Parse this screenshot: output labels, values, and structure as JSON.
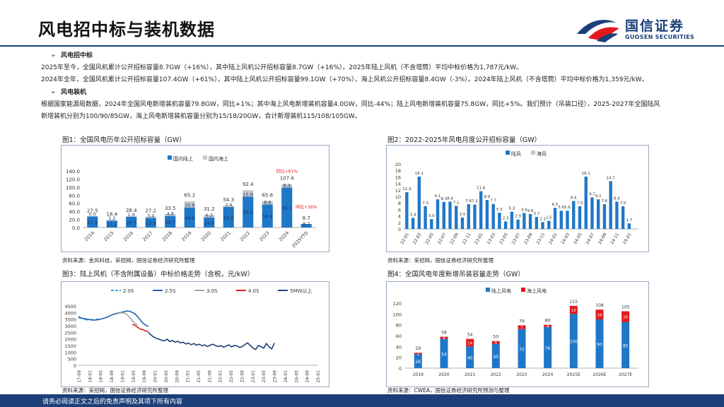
{
  "header": {
    "title": "风电招中标与装机数据"
  },
  "logo": {
    "cn": "国信证券",
    "en": "GUOSEN SECURITIES"
  },
  "colors": {
    "navy": "#1c3f7a",
    "blue": "#1f77c8",
    "red": "#e3191c",
    "lightgray": "#c8c8c8",
    "gray": "#a6a6a6",
    "dashblue": "#2fa6e0"
  },
  "text": {
    "sec1_title": "风电招中标",
    "sec1_p1": "2025年至今，全国风机累计公开招标容量8.7GW（+16%），其中陆上风机公开招标容量8.7GW（+16%）。2025年陆上风机（不含塔筒）平均中标价格为1,787元/kW。",
    "sec1_p2": "2024年全年，全国风机累计公开招标容量107.4GW（+61%），其中陆上风机公开招标容量99.1GW（+70%），海上风机公开招标容量8.4GW（-3%）。2024年陆上风机（不含塔筒）平均中标价格为1,359元/kW。",
    "sec2_title": "风电装机",
    "sec2_p1": "根据国家能源局数据，2024年全国风电新增装机容量79.8GW，同比+1%；其中海上风电新增装机容量4.0GW，同比-44%；陆上风电新增装机容量75.8GW，同比+5%。我们预计（吊装口径），2025-2027年全国陆风",
    "sec2_p2": "新增装机分别为100/90/85GW，海上风电新增装机容量分别为15/18/20GW，合计新增装机115/108/105GW。"
  },
  "fig1": {
    "title": "图1：全国风电历年公开招标容量（GW）",
    "source": "资料来源：金风科技，采招网，国信证券经济研究所整理",
    "annotations": [
      "同比+61%",
      "同比+16%"
    ]
  },
  "fig2": {
    "title": "图2：2022-2025年风电月度公开招标容量（GW）",
    "source": "资料来源：采招网，国信证券经济研究所整理"
  },
  "fig3": {
    "title": "图3：陆上风机（不含附属设备）中标价格走势（含税，元/kW）",
    "source": "资料来源：采招网，国信证券经济研究所整理"
  },
  "fig4": {
    "title": "图4：全国风电年度新增吊装容量走势（GW）",
    "source": "资料来源：CWEA，国信证券经济研究所预测与整理"
  },
  "footer": {
    "text": "请务必阅读正文之后的免责声明及其项下所有内容"
  },
  "chart_data": [
    {
      "type": "bar",
      "stacked": true,
      "categories": [
        "2014",
        "2015",
        "2016",
        "2017",
        "2018",
        "2019",
        "2020",
        "2021",
        "2022",
        "2023",
        "2024",
        "2025YTD"
      ],
      "series": [
        {
          "name": "国内陆上",
          "values": [
            27.5,
            17.2,
            26.5,
            23.8,
            28.7,
            49.6,
            24.9,
            50.9,
            76.5,
            56.9,
            99.1,
            8.7
          ],
          "color": "#1f77c8"
        },
        {
          "name": "国内海上",
          "values": [
            0.0,
            1.2,
            1.9,
            3.4,
            4.8,
            15.6,
            6.3,
            3.4,
            15.9,
            8.6,
            8.4,
            0.0
          ],
          "color": "#c8c8c8"
        }
      ],
      "totals": [
        27.5,
        18.4,
        28.4,
        27.2,
        33.5,
        65.2,
        31.2,
        54.3,
        92.4,
        65.6,
        107.4,
        8.7
      ],
      "ylim": [
        0,
        140
      ],
      "yticks": [
        "0.0",
        "20.0",
        "40.0",
        "60.0",
        "80.0",
        "100.0",
        "120.0",
        "140.0"
      ],
      "legend": "top"
    },
    {
      "type": "bar",
      "stacked": true,
      "categories": [
        "22-01",
        "22-02",
        "22-03",
        "22-04",
        "22-05",
        "22-06",
        "22-07",
        "22-08",
        "22-09",
        "22-10",
        "22-11",
        "22-12",
        "23-01",
        "23-02",
        "23-03",
        "23-04",
        "23-05",
        "23-06",
        "23-07",
        "23-08",
        "23-09",
        "23-10",
        "23-11",
        "23-12",
        "24-01",
        "24-02",
        "24-03",
        "24-04",
        "24-05",
        "24-06",
        "24-07",
        "24-08",
        "24-09",
        "24-10",
        "24-11",
        "24-12",
        "25-01",
        "25-02"
      ],
      "xticks": [
        "22-01",
        "22-03",
        "22-05",
        "22-07",
        "22-09",
        "22-11",
        "23-01",
        "23-03",
        "23-05",
        "23-07",
        "23-09",
        "23-11",
        "24-01",
        "24-03",
        "24-05",
        "24-07",
        "24-09",
        "24-11",
        "25-01"
      ],
      "series": [
        {
          "name": "陆风",
          "values": [
            11.3,
            3.4,
            16.1,
            7.0,
            3.0,
            9.1,
            8.3,
            8.4,
            7.1,
            3.5,
            7.6,
            7.5,
            11.6,
            8.9,
            7.7,
            5.0,
            2.3,
            5.3,
            2.9,
            4.9,
            4.6,
            3.7,
            2.1,
            2.5,
            6.5,
            5.6,
            5.6,
            8.6,
            7.0,
            16.1,
            9.7,
            9.1,
            7.6,
            14.7,
            8.4,
            7.0,
            1.7,
            0
          ],
          "color": "#1f77c8"
        },
        {
          "name": "海风",
          "values": [
            0,
            0,
            0,
            0,
            0,
            0,
            0,
            0,
            0,
            0,
            0,
            0,
            0,
            0,
            0,
            0,
            0,
            0,
            0,
            0,
            0,
            0,
            0,
            0,
            0,
            0,
            0,
            0,
            0,
            0,
            0,
            0,
            0,
            0,
            0,
            0,
            0,
            0
          ],
          "color": "#c8c8c8"
        }
      ],
      "labels": [
        "11.3",
        "3.4",
        "16.1",
        "7.0",
        "3.0",
        "9.1",
        "8.3",
        "8.4",
        "7.1",
        "3.5",
        "7.6",
        "7.5",
        "11.6",
        "8.9",
        "7.7",
        "5.0",
        "2.3",
        "5.3",
        "2.9",
        "4.9",
        "4.6",
        "3.7",
        "2.1",
        "2.5",
        "6.5",
        "5.6",
        "5.6",
        "8.6",
        "7.0",
        "16.1",
        "9.7",
        "9.1",
        "7.6",
        "14.7",
        "8.4",
        "7.0",
        "1.7",
        ""
      ],
      "ylim": [
        0,
        20
      ],
      "yticks": [
        "0",
        "2",
        "4",
        "6",
        "8",
        "10",
        "12",
        "14",
        "16",
        "18",
        "20"
      ],
      "legend": "top"
    },
    {
      "type": "line",
      "xticks": [
        "17-09",
        "18-01",
        "18-05",
        "18-09",
        "19-01",
        "19-05",
        "19-09",
        "20-01",
        "20-05",
        "20-09",
        "21-01",
        "21-05",
        "21-09",
        "22-01",
        "22-05",
        "22-09",
        "23-01",
        "23-05",
        "23-09",
        "24-01",
        "24-05",
        "24-09",
        "25-01"
      ],
      "series": [
        {
          "name": "2.0S",
          "color": "#2fa6e0",
          "dash": true,
          "start": 0,
          "values": [
            3600,
            3560,
            3500,
            3440,
            3430,
            3480,
            3420,
            3500,
            3540
          ]
        },
        {
          "name": "2.5S",
          "color": "#1f5fb4",
          "dash": false,
          "start": 0,
          "values": [
            3700,
            3580,
            3550,
            3500,
            3470,
            3440,
            3430,
            3450,
            3480,
            3540,
            3600,
            3680,
            3780,
            3860,
            3920,
            3980,
            4020,
            4060,
            4120,
            4100,
            4020,
            3900,
            3700,
            3450,
            3200,
            3050,
            2950
          ]
        },
        {
          "name": "3.0S",
          "color": "#a6a6a6",
          "dash": false,
          "start": 14,
          "values": [
            3880,
            3950,
            3980,
            3960,
            3860,
            3650,
            3380,
            3200,
            3050
          ]
        },
        {
          "name": "4.0S",
          "color": "#e3191c",
          "dash": false,
          "start": 20,
          "values": [
            3100,
            3050,
            2880,
            2760,
            2700,
            2600,
            2560
          ]
        },
        {
          "name": "5MW以上",
          "color": "#1c3f7a",
          "dash": false,
          "start": 26,
          "values": [
            2500,
            2300,
            2150,
            2050,
            1980,
            1900,
            1850,
            1980,
            1800,
            1880,
            1750,
            1820,
            1700,
            1750,
            1620,
            1680,
            1560,
            1650,
            1520,
            1600,
            1480,
            1550,
            1430,
            1520,
            1600,
            1500,
            1420,
            1500,
            1380,
            1450,
            1550,
            1400,
            1500,
            1480,
            1350,
            1420,
            1580,
            1700,
            1500,
            1300,
            1200,
            1500,
            1420,
            1300,
            1650,
            1400,
            1250,
            1700
          ]
        }
      ],
      "points_total": 90,
      "ylim": [
        0,
        4500
      ],
      "yticks": [
        "0",
        "500",
        "1000",
        "1500",
        "2000",
        "2500",
        "3000",
        "3500",
        "4000",
        "4500"
      ],
      "legend": "top"
    },
    {
      "type": "bar",
      "stacked": true,
      "categories": [
        "2019",
        "2020",
        "2021",
        "2022",
        "2023",
        "2024",
        "2025E",
        "2026E",
        "2027E"
      ],
      "series": [
        {
          "name": "陆上风电",
          "values": [
            26,
            54,
            40,
            45,
            72,
            76,
            100,
            90,
            85
          ],
          "color": "#1f77c8"
        },
        {
          "name": "海上风电",
          "values": [
            2.4,
            4,
            14,
            5,
            7,
            4,
            15,
            18,
            20
          ],
          "color": "#e3191c"
        }
      ],
      "bottom_labels": [
        "26",
        "54",
        "40",
        "45",
        "72",
        "76",
        "100",
        "90",
        "85"
      ],
      "top_labels": [
        "2",
        "4",
        "14",
        "5",
        "7",
        "4",
        "15",
        "18",
        "20"
      ],
      "totals": [
        "29",
        "58",
        "54",
        "50",
        "79",
        "80",
        "115",
        "108",
        "105"
      ],
      "ylim": [
        0,
        120
      ],
      "yticks": [
        "0",
        "20",
        "40",
        "60",
        "80",
        "100",
        "120"
      ],
      "legend": "top"
    }
  ]
}
